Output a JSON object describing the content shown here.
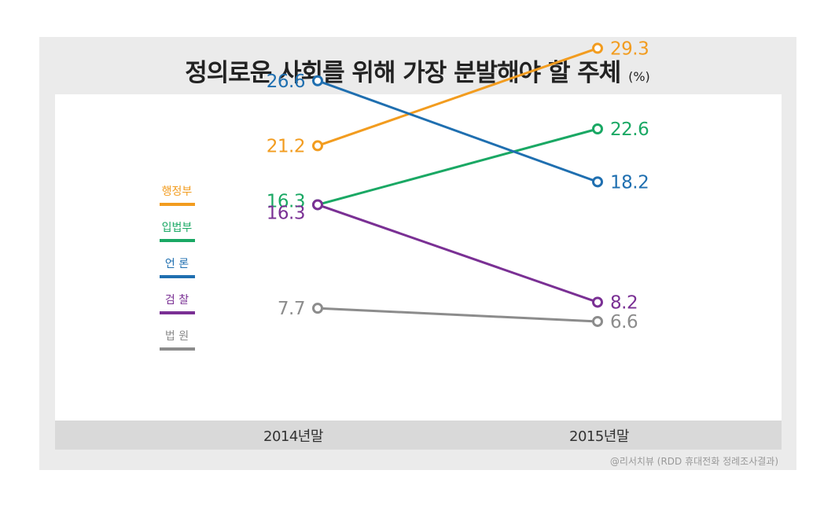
{
  "title": "정의로운 사회를 위해 가장 분발해야 할 주체",
  "unit_label": "(%)",
  "source": "@리서치뷰 (RDD 휴대전화 정례조사결과)",
  "chart_data": {
    "type": "line",
    "title": "정의로운 사회를 위해 가장 분발해야 할 주체",
    "unit": "(%)",
    "x": [
      "2014년말",
      "2015년말"
    ],
    "ylim": [
      0,
      35
    ],
    "grid": false,
    "legend_placement": "left",
    "series": [
      {
        "name": "행정부",
        "values": [
          21.2,
          29.3
        ],
        "labels": [
          "21.2",
          "29.3"
        ],
        "color": "#f29c1f"
      },
      {
        "name": "입법부",
        "values": [
          16.3,
          22.6
        ],
        "labels": [
          "16.3",
          "22.6"
        ],
        "color": "#1aa864"
      },
      {
        "name": "언  론",
        "values": [
          26.6,
          18.2
        ],
        "labels": [
          "26.6",
          "18.2"
        ],
        "color": "#1f6fb0"
      },
      {
        "name": "검  찰",
        "values": [
          16.3,
          8.2
        ],
        "labels": [
          "16.3",
          "8.2"
        ],
        "color": "#7a3094"
      },
      {
        "name": "법  원",
        "values": [
          7.7,
          6.6
        ],
        "labels": [
          "7.7",
          "6.6"
        ],
        "color": "#8c8c8c"
      }
    ]
  }
}
